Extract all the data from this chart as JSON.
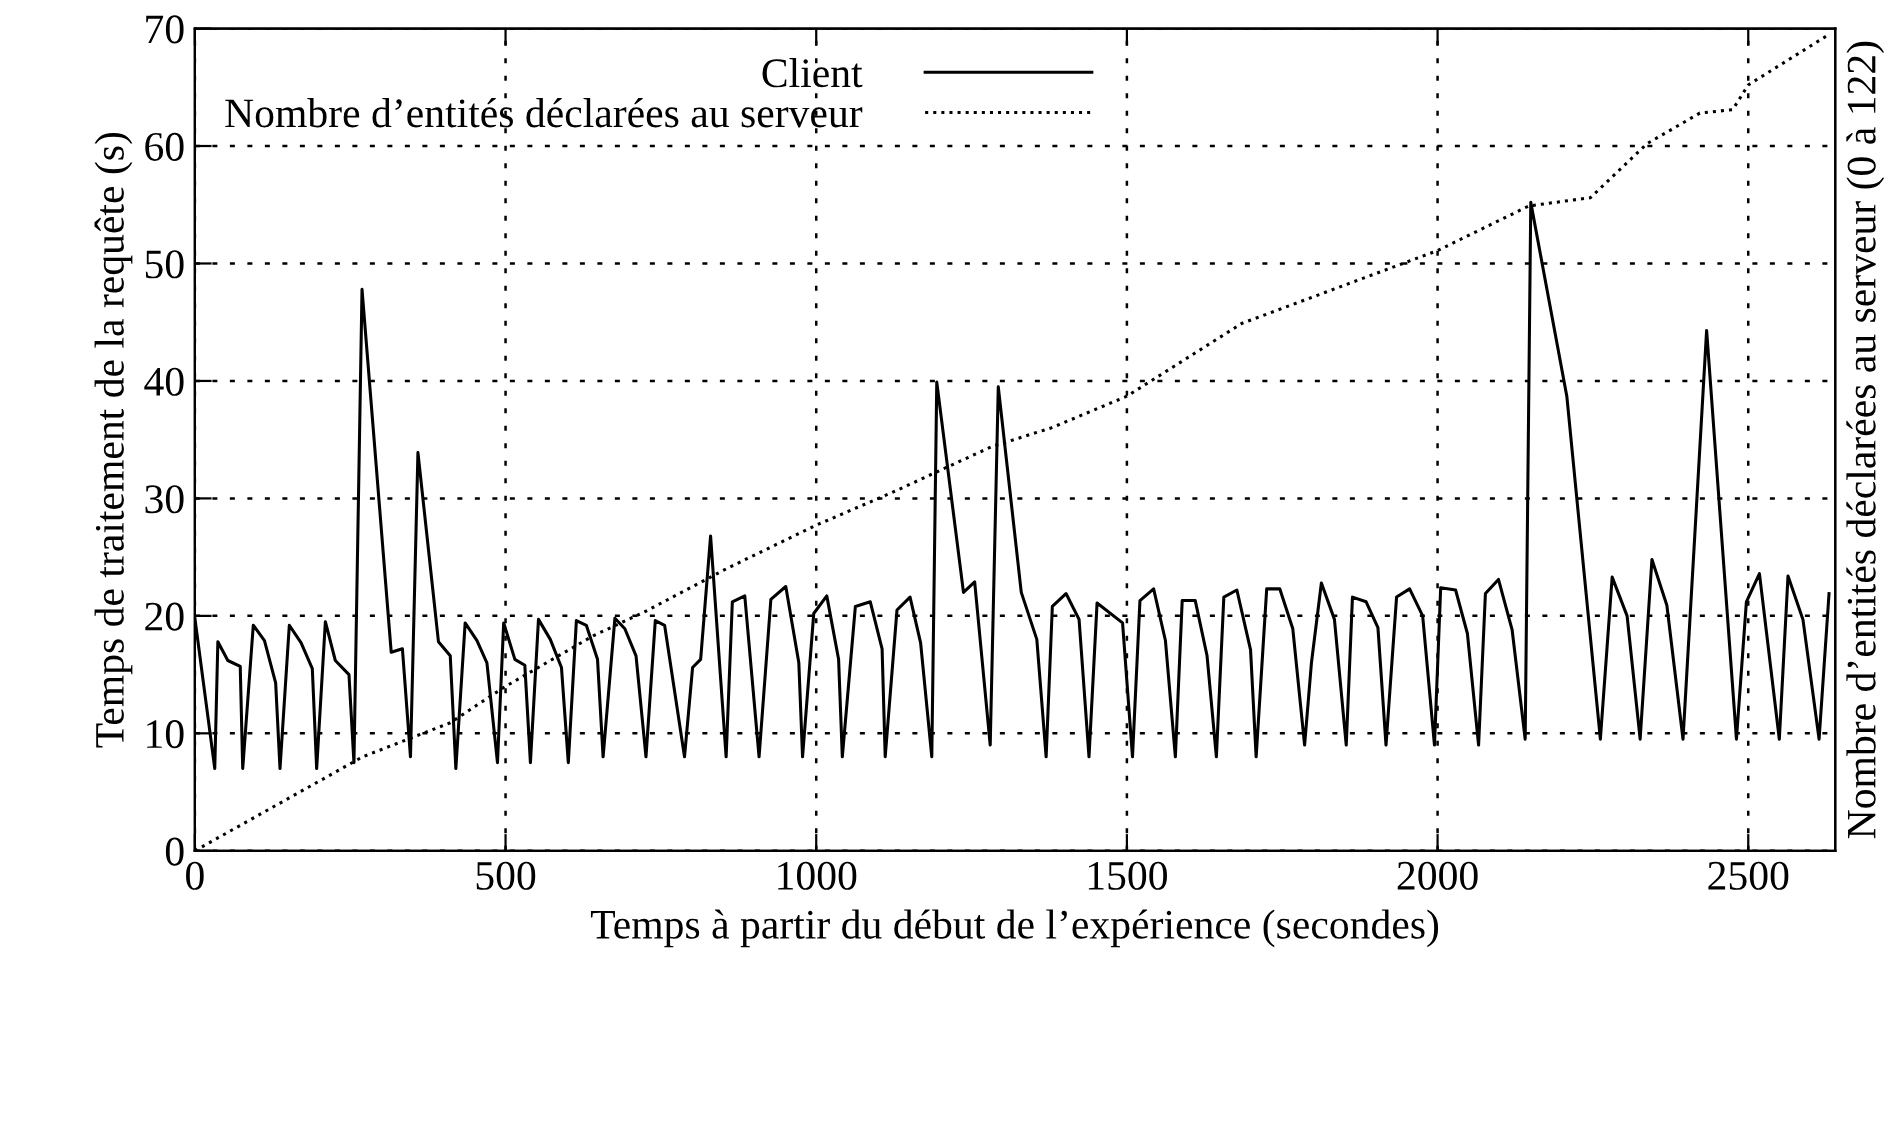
{
  "chart_data": {
    "type": "line",
    "xlabel": "Temps à partir du début de l’expérience (secondes)",
    "ylabel": "Temps de traitement de la requête (s)",
    "y2label": "Nombre d’entités déclarées au serveur (0 à 122)",
    "xlim": [
      0,
      2640
    ],
    "ylim": [
      0,
      70
    ],
    "xticks": [
      0,
      500,
      1000,
      1500,
      2000,
      2500
    ],
    "yticks": [
      0,
      10,
      20,
      30,
      40,
      50,
      60,
      70
    ],
    "grid": true,
    "legend": "top left",
    "series": [
      {
        "name": "Client",
        "color": "#000000",
        "line_style": "solid",
        "x": [
          0,
          32,
          37,
          53,
          73,
          77,
          94,
          112,
          130,
          137,
          152,
          171,
          189,
          196,
          210,
          226,
          248,
          256,
          269,
          316,
          334,
          347,
          359,
          392,
          411,
          420,
          435,
          454,
          470,
          487,
          497,
          515,
          531,
          540,
          553,
          572,
          590,
          601,
          614,
          630,
          648,
          657,
          676,
          692,
          710,
          726,
          741,
          756,
          788,
          801,
          814,
          830,
          855,
          865,
          885,
          908,
          927,
          951,
          972,
          978,
          996,
          1017,
          1036,
          1042,
          1063,
          1087,
          1106,
          1111,
          1130,
          1151,
          1168,
          1186,
          1194,
          1237,
          1255,
          1280,
          1293,
          1330,
          1355,
          1370,
          1380,
          1402,
          1423,
          1439,
          1452,
          1493,
          1509,
          1521,
          1543,
          1562,
          1578,
          1589,
          1610,
          1629,
          1644,
          1656,
          1677,
          1699,
          1708,
          1725,
          1746,
          1767,
          1786,
          1797,
          1813,
          1834,
          1853,
          1863,
          1885,
          1904,
          1917,
          1934,
          1955,
          1976,
          1995,
          2005,
          2029,
          2048,
          2066,
          2077,
          2098,
          2120,
          2141,
          2150,
          2208,
          2262,
          2281,
          2305,
          2326,
          2345,
          2369,
          2395,
          2433,
          2481,
          2497,
          2518,
          2550,
          2564,
          2588,
          2614,
          2630
        ],
        "values": [
          19.8,
          7,
          17.8,
          16.2,
          15.7,
          7,
          19.2,
          17.9,
          14.3,
          7,
          19.2,
          17.7,
          15.5,
          7,
          19.5,
          16.2,
          15,
          7.5,
          47.8,
          16.9,
          17.2,
          8,
          33.9,
          17.8,
          16.6,
          7,
          19.4,
          17.9,
          16,
          7.5,
          19.4,
          16.3,
          15.8,
          7.5,
          19.7,
          18,
          15.6,
          7.5,
          19.6,
          19.2,
          16.3,
          8,
          19.8,
          18.9,
          16.6,
          8,
          19.6,
          19.2,
          8,
          15.6,
          16.3,
          26.8,
          8,
          21.2,
          21.7,
          8,
          21.4,
          22.5,
          16,
          8,
          20.2,
          21.7,
          16.3,
          8,
          20.8,
          21.2,
          17.2,
          8,
          20.5,
          21.6,
          17.7,
          8,
          39.9,
          22,
          22.9,
          9,
          39.5,
          22,
          18,
          8,
          20.8,
          21.9,
          19.7,
          8,
          21.1,
          19.4,
          8,
          21.3,
          22.3,
          17.9,
          8,
          21.3,
          21.3,
          16.6,
          8,
          21.6,
          22.2,
          17.1,
          8,
          22.3,
          22.3,
          18.9,
          9,
          16,
          22.8,
          19.7,
          9,
          21.6,
          21.2,
          19,
          9,
          21.6,
          22.3,
          20,
          9,
          22.4,
          22.2,
          18.5,
          9,
          21.9,
          23.1,
          18.8,
          9.5,
          55.2,
          38.7,
          9.5,
          23.3,
          20,
          9.5,
          24.8,
          20.9,
          9.5,
          44.3,
          9.5,
          21.2,
          23.6,
          9.5,
          23.4,
          19.7,
          9.5,
          21.9
        ]
      },
      {
        "name": "Nombre d’entités déclarées au serveur",
        "color": "#000000",
        "line_style": "dotted",
        "x": [
          0,
          270,
          411,
          497,
          641,
          726,
          855,
          999,
          1122,
          1282,
          1378,
          1500,
          1685,
          2000,
          2147,
          2246,
          2337,
          2422,
          2475,
          2500,
          2630
        ],
        "values": [
          0,
          8,
          10.9,
          13.9,
          18.3,
          20.4,
          24,
          27.7,
          30.5,
          34.4,
          36,
          38.7,
          44.9,
          51.1,
          54.9,
          55.6,
          60.2,
          62.8,
          63.1,
          65.2,
          69.5
        ]
      }
    ]
  }
}
